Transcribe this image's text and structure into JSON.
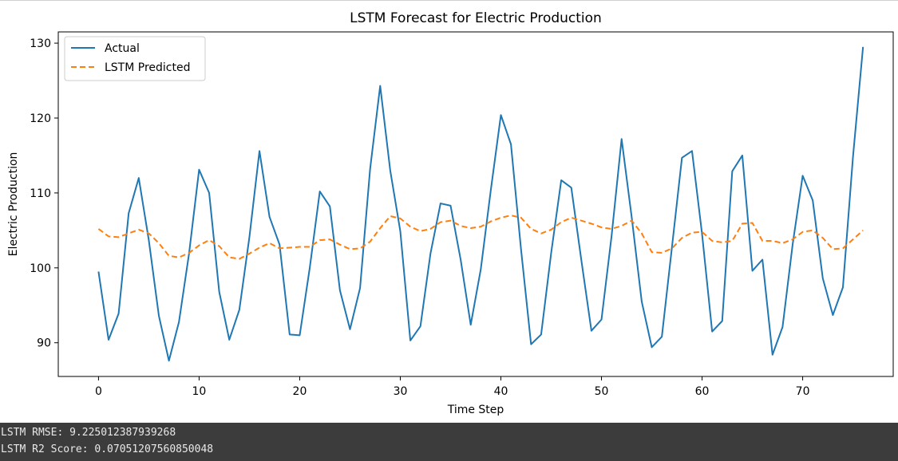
{
  "chart_data": {
    "type": "line",
    "title": "LSTM Forecast for Electric Production",
    "xlabel": "Time Step",
    "ylabel": "Electric Production",
    "xlim": [
      -4,
      79
    ],
    "ylim": [
      85.5,
      131.5
    ],
    "xticks": [
      0,
      10,
      20,
      30,
      40,
      50,
      60,
      70
    ],
    "yticks": [
      90,
      100,
      110,
      120,
      130
    ],
    "legend_position": "top-left",
    "grid": false,
    "series": [
      {
        "name": "Actual",
        "color": "#1f77b4",
        "style": "solid",
        "values": [
          99.5,
          90.4,
          93.9,
          107.3,
          112.0,
          103.7,
          93.6,
          87.6,
          92.8,
          101.9,
          113.1,
          110.0,
          96.8,
          90.4,
          94.4,
          104.1,
          115.6,
          106.8,
          103.1,
          91.1,
          91.0,
          100.0,
          110.2,
          108.2,
          97.0,
          91.8,
          97.3,
          113.2,
          124.3,
          113.0,
          104.9,
          90.3,
          92.2,
          101.9,
          108.6,
          108.3,
          101.1,
          92.4,
          99.8,
          110.4,
          120.4,
          116.5,
          102.5,
          89.8,
          91.1,
          102.0,
          111.7,
          110.7,
          101.0,
          91.6,
          93.1,
          104.2,
          117.2,
          106.8,
          95.5,
          89.4,
          90.8,
          102.7,
          114.7,
          115.6,
          104.5,
          91.5,
          92.9,
          112.9,
          115.0,
          99.6,
          101.1,
          88.4,
          92.1,
          103.1,
          112.3,
          109.0,
          98.6,
          93.7,
          97.4,
          114.8,
          129.5
        ]
      },
      {
        "name": "LSTM Predicted",
        "color": "#ff7f0e",
        "style": "dashed",
        "values": [
          105.2,
          104.2,
          104.1,
          104.6,
          105.1,
          104.6,
          103.3,
          101.6,
          101.4,
          102.0,
          103.0,
          103.7,
          102.9,
          101.4,
          101.2,
          101.9,
          102.7,
          103.3,
          102.6,
          102.7,
          102.8,
          102.8,
          103.7,
          103.8,
          103.1,
          102.5,
          102.6,
          103.5,
          105.3,
          106.9,
          106.6,
          105.5,
          104.9,
          105.2,
          106.1,
          106.3,
          105.6,
          105.3,
          105.5,
          106.2,
          106.7,
          107.0,
          106.7,
          105.2,
          104.6,
          105.1,
          106.1,
          106.7,
          106.3,
          105.9,
          105.4,
          105.2,
          105.6,
          106.3,
          104.6,
          102.1,
          102.0,
          102.6,
          104.0,
          104.7,
          104.8,
          103.6,
          103.4,
          103.6,
          105.9,
          106.0,
          103.6,
          103.6,
          103.3,
          103.8,
          104.8,
          105.0,
          104.0,
          102.5,
          102.6,
          103.8,
          105.0
        ]
      }
    ]
  },
  "console": {
    "line1": "LSTM RMSE: 9.225012387939268",
    "line2": "LSTM R2 Score: 0.07051207560850048"
  }
}
